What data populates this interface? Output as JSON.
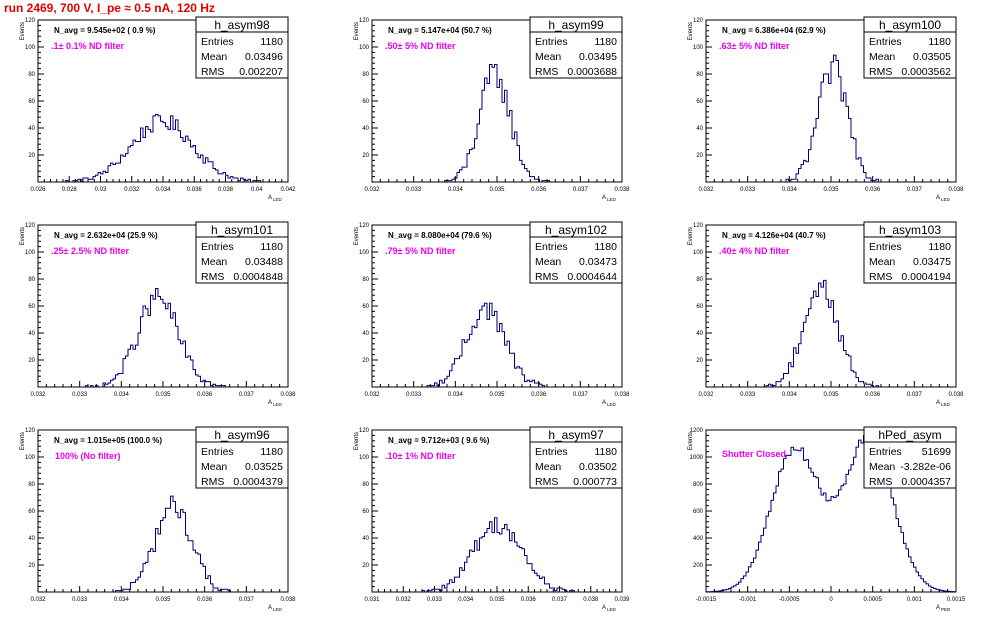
{
  "run_title": "run 2469,   700 V, I_pe ≈ 0.5 nA, 120 Hz",
  "colors": {
    "title": "#e00000",
    "histogram": "#000080",
    "filter_label": "#ee00ee"
  },
  "chart_data": [
    {
      "type": "histogram",
      "name": "h_asym98",
      "navg": "N_avg = 9.545e+02 ( 0.9 %)",
      "filter": ".1± 0.1% ND filter",
      "stats": {
        "entries_label": "Entries",
        "entries": "1180",
        "mean_label": "Mean",
        "mean": "0.03496",
        "rms_label": "RMS",
        "rms": "0.002207"
      },
      "xlim": [
        0.026,
        0.044
      ],
      "ylim": [
        0,
        120
      ],
      "xticks": [
        "0.026",
        "0.028",
        "0.03",
        "0.032",
        "0.034",
        "0.036",
        "0.038",
        "0.04",
        "0.042"
      ],
      "yticks": [
        "20",
        "40",
        "60",
        "80",
        "100",
        "120"
      ],
      "ylabel": "Events",
      "xlabel": "A_LED",
      "mean": 0.03496,
      "rms": 0.002207,
      "peak": 45,
      "entries": 1180
    },
    {
      "type": "histogram",
      "name": "h_asym99",
      "navg": "N_avg = 5.147e+04 (50.7 %)",
      "filter": ".50± 5% ND filter",
      "stats": {
        "entries_label": "Entries",
        "entries": "1180",
        "mean_label": "Mean",
        "mean": "0.03495",
        "rms_label": "RMS",
        "rms": "0.0003688"
      },
      "xlim": [
        0.032,
        0.038
      ],
      "ylim": [
        0,
        120
      ],
      "xticks": [
        "0.032",
        "0.033",
        "0.034",
        "0.035",
        "0.036",
        "0.037",
        "0.038"
      ],
      "yticks": [
        "20",
        "40",
        "60",
        "80",
        "100",
        "120"
      ],
      "ylabel": "Events",
      "xlabel": "A_LED",
      "mean": 0.03495,
      "rms": 0.0003688,
      "peak": 80,
      "entries": 1180
    },
    {
      "type": "histogram",
      "name": "h_asym100",
      "navg": "N_avg = 6.386e+04 (62.9 %)",
      "filter": ".63± 5% ND filter",
      "stats": {
        "entries_label": "Entries",
        "entries": "1180",
        "mean_label": "Mean",
        "mean": "0.03505",
        "rms_label": "RMS",
        "rms": "0.0003562"
      },
      "xlim": [
        0.032,
        0.038
      ],
      "ylim": [
        0,
        120
      ],
      "xticks": [
        "0.032",
        "0.033",
        "0.034",
        "0.035",
        "0.036",
        "0.037",
        "0.038"
      ],
      "yticks": [
        "20",
        "40",
        "60",
        "80",
        "100",
        "120"
      ],
      "ylabel": "Events",
      "xlabel": "A_LED",
      "mean": 0.03505,
      "rms": 0.0003562,
      "peak": 83,
      "entries": 1180
    },
    {
      "type": "histogram",
      "name": "h_asym101",
      "navg": "N_avg = 2.632e+04 (25.9 %)",
      "filter": ".25± 2.5% ND filter",
      "stats": {
        "entries_label": "Entries",
        "entries": "1180",
        "mean_label": "Mean",
        "mean": "0.03488",
        "rms_label": "RMS",
        "rms": "0.0004848"
      },
      "xlim": [
        0.032,
        0.038
      ],
      "ylim": [
        0,
        120
      ],
      "xticks": [
        "0.032",
        "0.033",
        "0.034",
        "0.035",
        "0.036",
        "0.037",
        "0.038"
      ],
      "yticks": [
        "20",
        "40",
        "60",
        "80",
        "100",
        "120"
      ],
      "ylabel": "Events",
      "xlabel": "A_LED",
      "mean": 0.03488,
      "rms": 0.0004848,
      "peak": 66,
      "entries": 1180
    },
    {
      "type": "histogram",
      "name": "h_asym102",
      "navg": "N_avg = 8.080e+04 (79.6 %)",
      "filter": ".79± 5% ND filter",
      "stats": {
        "entries_label": "Entries",
        "entries": "1180",
        "mean_label": "Mean",
        "mean": "0.03473",
        "rms_label": "RMS",
        "rms": "0.0004644"
      },
      "xlim": [
        0.032,
        0.038
      ],
      "ylim": [
        0,
        120
      ],
      "xticks": [
        "0.032",
        "0.033",
        "0.034",
        "0.035",
        "0.036",
        "0.037",
        "0.038"
      ],
      "yticks": [
        "20",
        "40",
        "60",
        "80",
        "100",
        "120"
      ],
      "ylabel": "Events",
      "xlabel": "A_LED",
      "mean": 0.03473,
      "rms": 0.0004644,
      "peak": 58,
      "entries": 1180
    },
    {
      "type": "histogram",
      "name": "h_asym103",
      "navg": "N_avg = 4.126e+04 (40.7 %)",
      "filter": ".40± 4% ND filter",
      "stats": {
        "entries_label": "Entries",
        "entries": "1180",
        "mean_label": "Mean",
        "mean": "0.03475",
        "rms_label": "RMS",
        "rms": "0.0004194"
      },
      "xlim": [
        0.032,
        0.038
      ],
      "ylim": [
        0,
        120
      ],
      "xticks": [
        "0.032",
        "0.033",
        "0.034",
        "0.035",
        "0.036",
        "0.037",
        "0.038"
      ],
      "yticks": [
        "20",
        "40",
        "60",
        "80",
        "100",
        "120"
      ],
      "ylabel": "Events",
      "xlabel": "A_LED",
      "mean": 0.03475,
      "rms": 0.0004194,
      "peak": 74,
      "entries": 1180
    },
    {
      "type": "histogram",
      "name": "h_asym96",
      "navg": "N_avg = 1.015e+05 (100.0 %)",
      "filter": "100% (No filter)",
      "stats": {
        "entries_label": "Entries",
        "entries": "1180",
        "mean_label": "Mean",
        "mean": "0.03525",
        "rms_label": "RMS",
        "rms": "0.0004379"
      },
      "xlim": [
        0.032,
        0.038
      ],
      "ylim": [
        0,
        120
      ],
      "xticks": [
        "0.032",
        "0.033",
        "0.034",
        "0.035",
        "0.036",
        "0.037",
        "0.038"
      ],
      "yticks": [
        "20",
        "40",
        "60",
        "80",
        "100",
        "120"
      ],
      "ylabel": "Events",
      "xlabel": "A_LED",
      "mean": 0.03525,
      "rms": 0.0004379,
      "peak": 64,
      "entries": 1180
    },
    {
      "type": "histogram",
      "name": "h_asym97",
      "navg": "N_avg = 9.712e+03 ( 9.6 %)",
      "filter": ".10± 1% ND filter",
      "stats": {
        "entries_label": "Entries",
        "entries": "1180",
        "mean_label": "Mean",
        "mean": "0.03502",
        "rms_label": "RMS",
        "rms": "0.000773"
      },
      "xlim": [
        0.031,
        0.039
      ],
      "ylim": [
        0,
        120
      ],
      "xticks": [
        "0.031",
        "0.032",
        "0.033",
        "0.034",
        "0.035",
        "0.036",
        "0.037",
        "0.038",
        "0.039"
      ],
      "yticks": [
        "20",
        "40",
        "60",
        "80",
        "100",
        "120"
      ],
      "ylabel": "Events",
      "xlabel": "A_LED",
      "mean": 0.03502,
      "rms": 0.000773,
      "peak": 50,
      "entries": 1180
    },
    {
      "type": "histogram",
      "name": "hPed_asym",
      "navg": "",
      "filter": "Shutter Closed",
      "stats": {
        "entries_label": "Entries",
        "entries": "51699",
        "mean_label": "Mean",
        "mean": "-3.282e-06",
        "rms_label": "RMS",
        "rms": "0.0004357"
      },
      "xlim": [
        -0.0015,
        0.0015
      ],
      "ylim": [
        0,
        1400
      ],
      "xticks": [
        "-0.0015",
        "-0.001",
        "-0.0005",
        "0",
        "0.0005",
        "0.001",
        "0.0015"
      ],
      "yticks": [
        "200",
        "400",
        "600",
        "800",
        "1000",
        "1200"
      ],
      "ylabel": "Events",
      "xlabel": "A_PED",
      "bimodal": true,
      "peak_left": 1230,
      "peak_right": 1330,
      "mode_left": -0.00043,
      "mode_right": 0.00045,
      "mode_sigma": 0.00029
    }
  ]
}
